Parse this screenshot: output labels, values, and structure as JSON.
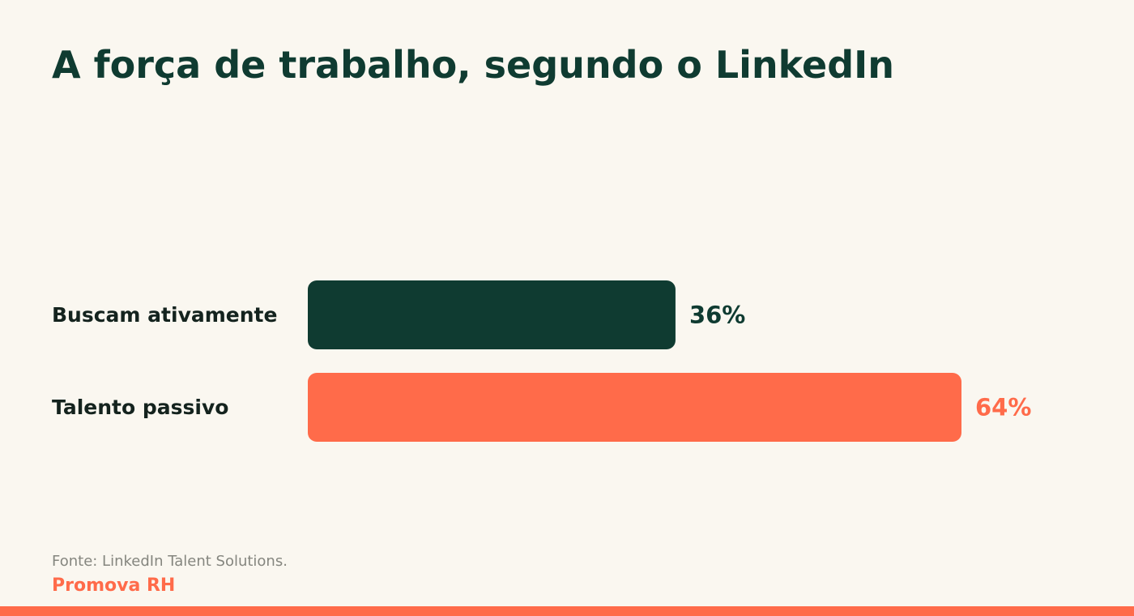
{
  "page": {
    "title": "A força de trabalho, segundo o LinkedIn",
    "source": "Fonte: LinkedIn Talent Solutions.",
    "brand": "Promova RH"
  },
  "colors": {
    "background": "#FAF7F0",
    "primary": "#0F3B31",
    "accent": "#FF6B4A"
  },
  "chart_data": {
    "type": "bar",
    "orientation": "horizontal",
    "title": "A força de trabalho, segundo o LinkedIn",
    "categories": [
      "Buscam ativamente",
      "Talento passivo"
    ],
    "values": [
      36,
      64
    ],
    "value_labels": [
      "36%",
      "64%"
    ],
    "unit": "%",
    "colors": [
      "#0F3B31",
      "#FF6B4A"
    ],
    "xlim": [
      0,
      64
    ],
    "grid": false,
    "legend": "none"
  }
}
